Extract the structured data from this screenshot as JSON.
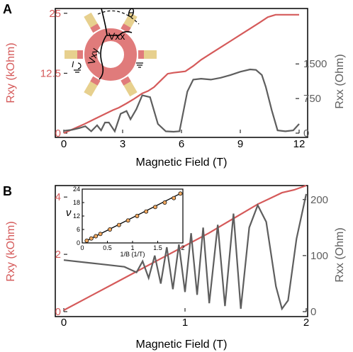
{
  "panels": [
    "A",
    "B"
  ],
  "colors": {
    "rxy": "#d55a5a",
    "rxx": "#5e5e5e",
    "ring": "#e07b7b",
    "pad": "#e7d08e",
    "pad_inner": "#e07b7b",
    "inset_marker": "#f0a860"
  },
  "chart_data": [
    {
      "type": "line",
      "panel": "A",
      "xlabel": "Magnetic Field (T)",
      "ylabel_left": "Rxy (kOhm)",
      "ylabel_right": "Rxx (Ohm)",
      "xlim": [
        0,
        12
      ],
      "ylim_left": [
        0,
        26
      ],
      "ylim_right": [
        0,
        2700
      ],
      "xticks": [
        "0",
        "3",
        "6",
        "9",
        "12"
      ],
      "yticks_left": [
        "0",
        "12.5",
        "25"
      ],
      "yticks_right": [
        "0",
        "750",
        "1500"
      ],
      "series": [
        {
          "axis": "left",
          "x": [
            0,
            0.5,
            1,
            1.5,
            2,
            2.5,
            2.8,
            3.2,
            3.6,
            4.0,
            4.3,
            4.6,
            5.0,
            5.3,
            5.6,
            6.2,
            6.6,
            7.0,
            7.5,
            8.0,
            8.5,
            9.0,
            9.5,
            10.0,
            10.4,
            10.8,
            11.2,
            11.6,
            12.0
          ],
          "y": [
            0,
            0.9,
            1.8,
            2.8,
            3.8,
            4.8,
            5.3,
            6.2,
            7.2,
            8.3,
            8.8,
            9.6,
            11.2,
            12.4,
            12.6,
            12.9,
            14.0,
            15.3,
            16.6,
            17.9,
            19.2,
            20.5,
            21.8,
            23.1,
            24.2,
            24.7,
            24.7,
            24.7,
            24.7
          ]
        },
        {
          "axis": "right",
          "x": [
            0,
            0.4,
            0.8,
            1.1,
            1.4,
            1.7,
            1.9,
            2.1,
            2.3,
            2.6,
            2.9,
            3.2,
            3.4,
            3.7,
            4.0,
            4.4,
            4.8,
            5.2,
            5.6,
            5.9,
            6.3,
            6.6,
            7.0,
            7.5,
            8.0,
            8.5,
            9.0,
            9.5,
            9.8,
            10.1,
            10.3,
            10.6,
            10.9,
            11.3,
            11.7,
            12.0
          ],
          "y": [
            50,
            70,
            110,
            150,
            40,
            170,
            60,
            230,
            230,
            40,
            420,
            480,
            300,
            520,
            820,
            780,
            200,
            40,
            30,
            40,
            900,
            1160,
            1180,
            1160,
            1200,
            1260,
            1330,
            1380,
            1370,
            1260,
            1000,
            500,
            60,
            40,
            60,
            200
          ]
        }
      ]
    },
    {
      "type": "line",
      "panel": "B",
      "xlabel": "Magnetic Field (T)",
      "ylabel_left": "Rxy (kOhm)",
      "ylabel_right": "Rxx (Ohm)",
      "xlim": [
        0,
        2
      ],
      "ylim_left": [
        0,
        4.4
      ],
      "ylim_right": [
        0,
        225
      ],
      "xticks": [
        "0",
        "1",
        "2"
      ],
      "yticks_left": [
        "0",
        "2",
        "4"
      ],
      "yticks_right": [
        "0",
        "100",
        "200"
      ],
      "series": [
        {
          "axis": "left",
          "x": [
            0,
            0.2,
            0.4,
            0.6,
            0.8,
            1.0,
            1.2,
            1.3,
            1.4,
            1.5,
            1.6,
            1.7,
            1.8,
            1.9,
            2.0
          ],
          "y": [
            0.05,
            0.5,
            0.95,
            1.4,
            1.85,
            2.3,
            2.75,
            3.0,
            3.25,
            3.5,
            3.75,
            3.95,
            4.15,
            4.25,
            4.4
          ]
        },
        {
          "axis": "right",
          "x": [
            0,
            0.3,
            0.5,
            0.6,
            0.65,
            0.7,
            0.75,
            0.8,
            0.85,
            0.9,
            0.95,
            1.0,
            1.05,
            1.1,
            1.15,
            1.2,
            1.27,
            1.33,
            1.4,
            1.46,
            1.53,
            1.6,
            1.67,
            1.75,
            1.8,
            1.85,
            1.92,
            2.0
          ],
          "y": [
            92,
            85,
            80,
            70,
            90,
            60,
            100,
            50,
            115,
            40,
            120,
            35,
            140,
            30,
            150,
            15,
            155,
            10,
            175,
            5,
            150,
            190,
            160,
            45,
            5,
            20,
            130,
            210
          ]
        }
      ],
      "inset": {
        "xlabel": "1/B (1/T)",
        "ylabel": "ν",
        "xlim": [
          0,
          2
        ],
        "ylim": [
          0,
          24
        ],
        "xticks": [
          "0",
          "0.5",
          "1",
          "1.5",
          "2"
        ],
        "yticks": [
          "0",
          "6",
          "12",
          "18",
          "24"
        ],
        "x": [
          0.09,
          0.18,
          0.27,
          0.36,
          0.55,
          0.73,
          0.91,
          1.09,
          1.27,
          1.45,
          1.64,
          1.82,
          1.95
        ],
        "y": [
          1,
          2,
          3,
          4,
          6,
          8,
          10,
          12,
          14,
          16,
          18,
          20,
          22
        ]
      }
    }
  ],
  "schematic": {
    "label_vxx": "Vxx",
    "label_vxy": "Vxy",
    "label_angle": "θ",
    "label_current": "I"
  }
}
